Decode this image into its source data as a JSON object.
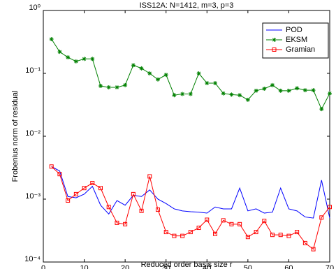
{
  "chart_data": {
    "type": "line",
    "title": "ISS12A: N=1412, m=3, p=3",
    "xlabel": "Reduced order basis size r",
    "ylabel": "Frobenius norm of residual",
    "x": [
      2,
      4,
      6,
      8,
      10,
      12,
      14,
      16,
      18,
      20,
      22,
      24,
      26,
      28,
      30,
      32,
      34,
      36,
      38,
      40,
      42,
      44,
      46,
      48,
      50,
      52,
      54,
      56,
      58,
      60,
      62,
      64,
      66,
      68,
      70
    ],
    "series": [
      {
        "name": "POD",
        "color": "#0000ff",
        "marker": "none",
        "values": [
          0.0033,
          0.0028,
          0.0011,
          0.00105,
          0.0012,
          0.0016,
          0.0008,
          0.00058,
          0.00095,
          0.0008,
          0.00115,
          0.0011,
          0.0014,
          0.001,
          0.00085,
          0.0007,
          0.00065,
          0.00063,
          0.00062,
          0.0006,
          0.00075,
          0.0007,
          0.0007,
          0.0015,
          0.00065,
          0.0007,
          0.0006,
          0.00062,
          0.0015,
          0.0007,
          0.00065,
          0.00052,
          0.0005,
          0.002,
          0.0005
        ]
      },
      {
        "name": "EKSM",
        "color": "#008000",
        "marker": "asterisk",
        "values": [
          0.35,
          0.22,
          0.18,
          0.155,
          0.17,
          0.17,
          0.063,
          0.06,
          0.06,
          0.065,
          0.135,
          0.12,
          0.1,
          0.08,
          0.095,
          0.045,
          0.047,
          0.047,
          0.1,
          0.07,
          0.07,
          0.048,
          0.046,
          0.045,
          0.038,
          0.053,
          0.057,
          0.065,
          0.053,
          0.053,
          0.058,
          0.054,
          0.054,
          0.027,
          0.048
        ]
      },
      {
        "name": "Gramian",
        "color": "#ff0000",
        "marker": "square",
        "values": [
          0.0033,
          0.0025,
          0.00095,
          0.0012,
          0.0015,
          0.0018,
          0.0015,
          0.00075,
          0.00042,
          0.0004,
          0.0012,
          0.00065,
          0.0023,
          0.00068,
          0.0003,
          0.00026,
          0.00026,
          0.0003,
          0.00035,
          0.00047,
          0.00028,
          0.00046,
          0.0004,
          0.0004,
          0.00025,
          0.0003,
          0.00045,
          0.00027,
          0.00027,
          0.00026,
          0.0003,
          0.0002,
          0.00016,
          0.00051,
          0.00075
        ]
      }
    ],
    "xlim": [
      0,
      70
    ],
    "xticks": [
      0,
      10,
      20,
      30,
      40,
      50,
      60,
      70
    ],
    "ylim": [
      0.0001,
      1
    ],
    "yscale": "log",
    "yticks": [
      {
        "value": 0.0001,
        "label": "10⁻⁴"
      },
      {
        "value": 0.001,
        "label": "10⁻³"
      },
      {
        "value": 0.01,
        "label": "10⁻²"
      },
      {
        "value": 0.1,
        "label": "10⁻¹"
      },
      {
        "value": 1,
        "label": "10⁰"
      }
    ],
    "legend": "northeast",
    "grid": false
  }
}
